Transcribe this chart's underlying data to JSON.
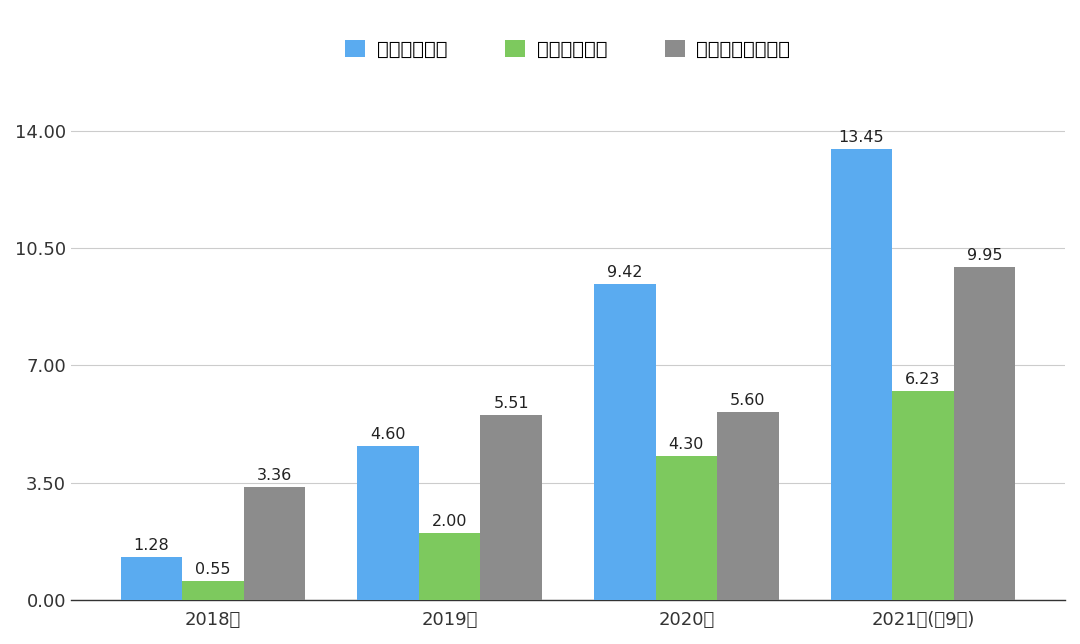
{
  "categories": [
    "2018年",
    "2019年",
    "2020年",
    "2021年(前9月)"
  ],
  "revenue": [
    1.28,
    4.6,
    9.42,
    13.45
  ],
  "gross": [
    0.55,
    2.0,
    4.3,
    6.23
  ],
  "op_loss": [
    3.36,
    5.51,
    5.6,
    9.95
  ],
  "revenue_color": "#5aabf0",
  "gross_color": "#7dc95e",
  "op_loss_color": "#8c8c8c",
  "legend_labels": [
    "收入（亿元）",
    "毛利（亿元）",
    "经营亏损（亿元）"
  ],
  "yticks": [
    0.0,
    3.5,
    7.0,
    10.5,
    14.0
  ],
  "ylim": [
    0,
    15.4
  ],
  "bar_width": 0.26,
  "background_color": "#ffffff",
  "tick_fontsize": 13,
  "legend_fontsize": 14,
  "value_fontsize": 11.5
}
